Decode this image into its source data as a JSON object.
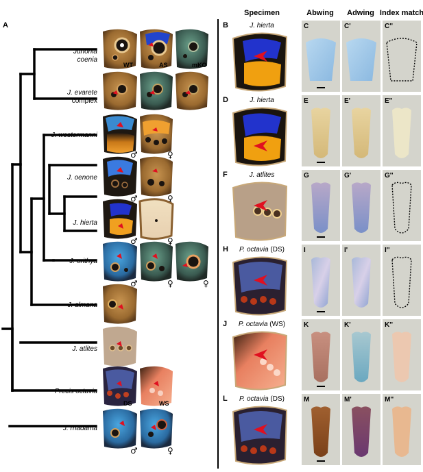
{
  "panel_A": {
    "label": "A",
    "taxa": [
      {
        "name": "Junonia",
        "name2": "coenia"
      },
      {
        "name": "J. evarete",
        "name2": "complex"
      },
      {
        "name": "J. westermanni"
      },
      {
        "name": "J. oenone"
      },
      {
        "name": "J. hierta"
      },
      {
        "name": "J. orithya"
      },
      {
        "name": "J. almana"
      },
      {
        "name": "J. atlites"
      },
      {
        "name": "Precis octavia"
      },
      {
        "name": "J. rhadama"
      }
    ],
    "wing_labels": {
      "wt": "WT",
      "as": "AS",
      "mko": "mKO",
      "ds": "DS",
      "ws": "WS"
    },
    "male": "♂",
    "female": "♀"
  },
  "right": {
    "headers": {
      "specimen": "Specimen",
      "abwing": "Abwing",
      "adwing": "Adwing",
      "index": "Index match"
    },
    "rows": [
      {
        "panel": "B",
        "specimen": "J. hierta",
        "suffix": "",
        "sub": [
          "C",
          "C'",
          "C''"
        ],
        "scale": "blue"
      },
      {
        "panel": "D",
        "specimen": "J. hierta",
        "suffix": "",
        "sub": [
          "E",
          "E'",
          "E''"
        ],
        "scale": "cream"
      },
      {
        "panel": "F",
        "specimen": "J. atlites",
        "suffix": "",
        "sub": [
          "G",
          "G'",
          "G''"
        ],
        "scale": "violet"
      },
      {
        "panel": "H",
        "specimen": "P. octavia",
        "suffix": "(DS)",
        "sub": [
          "I",
          "I'",
          "I''"
        ],
        "scale": "silver"
      },
      {
        "panel": "J",
        "specimen": "P. octavia",
        "suffix": "(WS)",
        "sub": [
          "K",
          "K'",
          "K''"
        ],
        "scale": "pink"
      },
      {
        "panel": "L",
        "specimen": "P. octavia",
        "suffix": "(DS)",
        "sub": [
          "M",
          "M'",
          "M''"
        ],
        "scale": "brown"
      }
    ]
  },
  "colors": {
    "tree": "#000000",
    "arrow": "#e01020",
    "wing_brown": "#b07a36",
    "wing_dark": "#2a1e14",
    "blue_patch": "#2233cc",
    "orange_patch": "#f3a010",
    "scale_bg": "#d8d8d0"
  }
}
